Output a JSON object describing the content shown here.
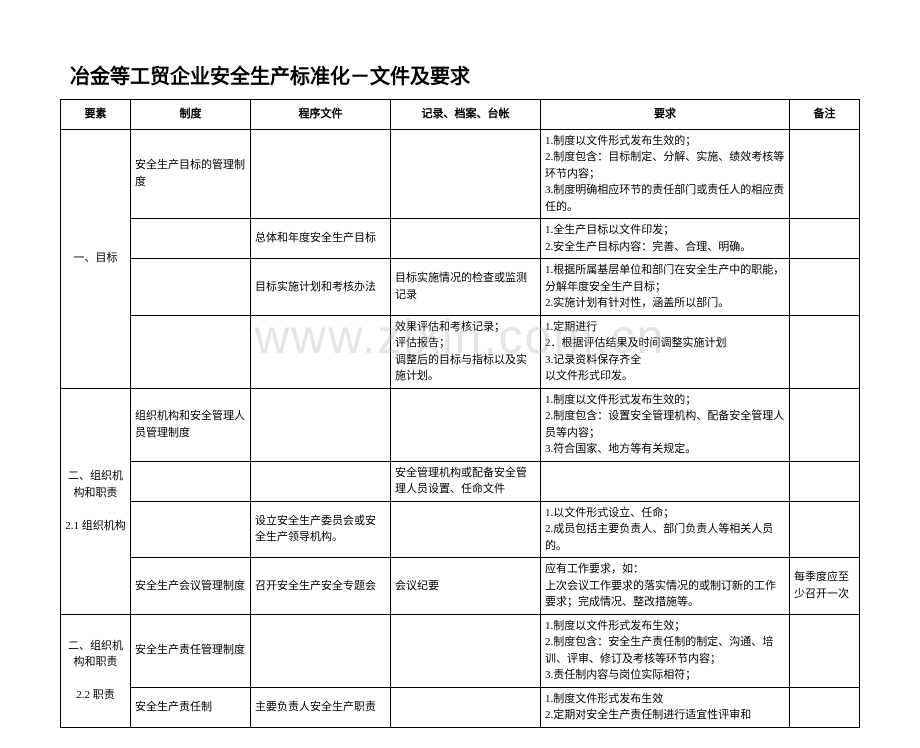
{
  "title": "冶金等工贸企业安全生产标准化－文件及要求",
  "watermark": "www.zixin.com.cn",
  "headers": {
    "yaosu": "要素",
    "zhidu": "制度",
    "chengxu": "程序文件",
    "jilu": "记录、档案、台帐",
    "yaoqiu": "要求",
    "beizhu": "备注"
  },
  "r": {
    "r1_yaosu": "一、目标",
    "r1_zhidu": "安全生产目标的管理制度",
    "r1_yaoqiu": "1.制度以文件形式发布生效的；\n2.制度包含：目标制定、分解、实施、绩效考核等环节内容；\n3.制度明确相应环节的责任部门或责任人的相应责任的。",
    "r2_chengxu": "总体和年度安全生产目标",
    "r2_yaoqiu": "1.全生产目标以文件印发；\n2.安全生产目标内容：完善、合理、明确。",
    "r3_chengxu": "目标实施计划和考核办法",
    "r3_jilu": "目标实施情况的检查或监测记录",
    "r3_yaoqiu": "1.根据所属基层单位和部门在安全生产中的职能，分解年度安全生产目标；\n2.实施计划有针对性，涵盖所以部门。",
    "r4_jilu": "效果评估和考核记录；\n评估报告；\n调整后的目标与指标以及实施计划。",
    "r4_yaoqiu": "1.定期进行\n2．根据评估结果及时间调整实施计划\n3.记录资料保存齐全\n以文件形式印发。",
    "r5_yaosu": "二、组织机构和职责\n\n2.1 组织机构",
    "r5_zhidu": "组织机构和安全管理人员管理制度",
    "r5_yaoqiu": "1.制度以文件形式发布生效的；\n2.制度包含：设置安全管理机构、配备安全管理人员等内容；\n3.符合国家、地方等有关规定。",
    "r6_jilu": "安全管理机构或配备安全管理人员设置、任命文件",
    "r7_chengxu": "设立安全生产委员会或安全生产领导机构。",
    "r7_yaoqiu": "1.以文件形式设立、任命；\n2.成员包括主要负责人、部门负责人等相关人员的。",
    "r8_zhidu": "安全生产会议管理制度",
    "r8_chengxu": "召开安全生产安全专题会",
    "r8_jilu": "会议纪要",
    "r8_yaoqiu": "  应有工作要求，如：\n  上次会议工作要求的落实情况的或制订新的工作要求；完成情况、整改措施等。",
    "r8_beizhu": "每季度应至少召开一次",
    "r9_yaosu": "二、组织机构和职责\n\n2.2 职责",
    "r9_zhidu": "安全生产责任管理制度",
    "r9_yaoqiu": "1.制度以文件形式发布生效；\n2.制度包含：安全生产责任制的制定、沟通、培训、评审、修订及考核等环节内容；\n3.责任制内容与岗位实际相符；",
    "r10_zhidu": "安全生产责任制",
    "r10_chengxu": "主要负责人安全生产职责",
    "r10_yaoqiu": "1.制度文件形式发布生效\n2.定期对安全生产责任制进行适宜性评审和"
  }
}
